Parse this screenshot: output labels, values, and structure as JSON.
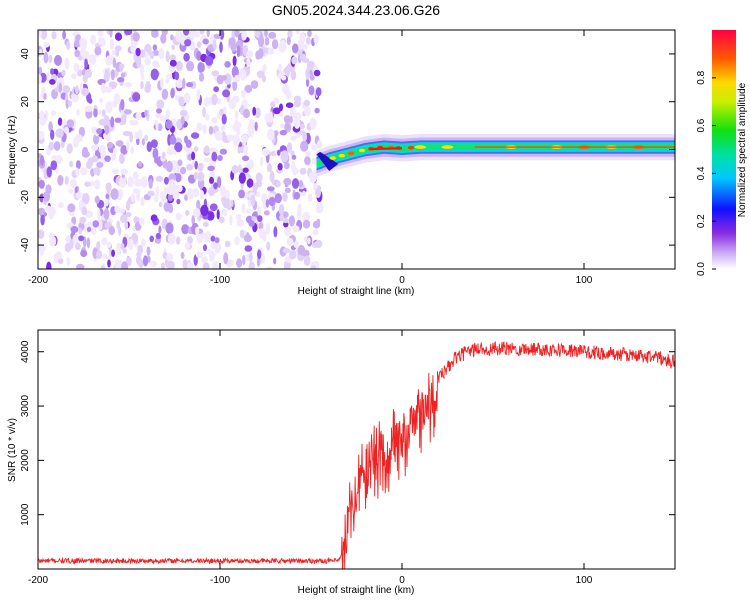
{
  "title": "GN05.2024.344.23.06.G26",
  "colors": {
    "snr_line": "#ee2222",
    "noise_purple": "#7a2ee6",
    "frame": "#000000"
  },
  "chart_data": [
    {
      "type": "heatmap",
      "xlabel": "Height of straight line (km)",
      "ylabel": "Frequency (Hz)",
      "xlim": [
        -200,
        150
      ],
      "ylim": [
        -50,
        50
      ],
      "x_ticks": [
        -200,
        -100,
        0,
        100
      ],
      "y_ticks": [
        -40,
        -20,
        0,
        20,
        40
      ],
      "colorbar": {
        "label": "Normalized spectral amplitude",
        "range": [
          0,
          1
        ],
        "ticks": [
          0.0,
          0.2,
          0.4,
          0.6,
          0.8
        ],
        "colormap": "rainbow (magenta-blue-cyan-green-yellow-red)"
      },
      "noise_region": {
        "x_range": [
          -200,
          -45
        ],
        "y_range": [
          -50,
          50
        ]
      },
      "ridge": {
        "x": [
          -47,
          -40,
          -30,
          -20,
          -10,
          0,
          10,
          30,
          60,
          100,
          150
        ],
        "y": [
          -6,
          -4,
          -2,
          0,
          1,
          0.5,
          1,
          1,
          1,
          1,
          1
        ]
      }
    },
    {
      "type": "line",
      "xlabel": "Height of straight line (km)",
      "ylabel": "SNR (10 * v/v)",
      "xlim": [
        -200,
        150
      ],
      "ylim": [
        0,
        4400
      ],
      "x_ticks": [
        -200,
        -100,
        0,
        100
      ],
      "y_ticks": [
        1000,
        2000,
        3000,
        4000
      ],
      "series": [
        {
          "x": [
            -200,
            -150,
            -100,
            -50,
            -35,
            -33,
            -30,
            -25,
            -20,
            -15,
            -10,
            -5,
            0,
            5,
            10,
            15,
            20,
            30,
            40,
            60,
            80,
            100,
            120,
            140,
            150
          ],
          "values": [
            150,
            150,
            150,
            150,
            150,
            250,
            1000,
            1700,
            2100,
            2200,
            2400,
            2500,
            2600,
            2800,
            3000,
            3200,
            3500,
            3900,
            4050,
            4050,
            4050,
            4000,
            3950,
            3900,
            3800
          ]
        }
      ]
    }
  ]
}
